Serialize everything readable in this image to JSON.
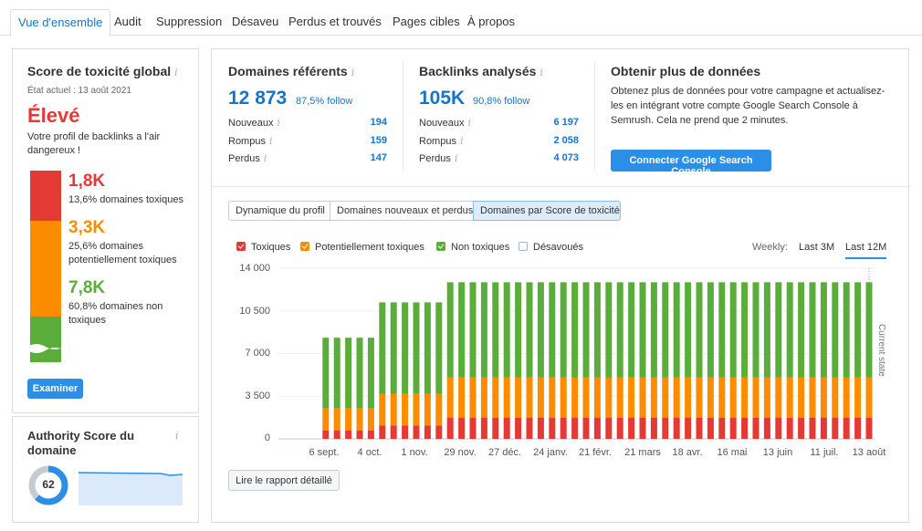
{
  "tabs": [
    "Vue d'ensemble",
    "Audit",
    "Suppression",
    "Désaveu",
    "Perdus et trouvés",
    "Pages cibles",
    "À propos"
  ],
  "toxicity": {
    "title": "Score de toxicité global",
    "info": "i",
    "state": "État actuel : 13 août 2021",
    "level": "Élevé",
    "description": "Votre profil de backlinks a l'air dangereux !",
    "colors": {
      "toxic": "#e53935",
      "potential": "#fb8c00",
      "non_toxic": "#5aad3a"
    },
    "items": [
      {
        "value": "1,8K",
        "label": "13,6% domaines toxiques"
      },
      {
        "value": "3,3K",
        "label": "25,6% domaines potentiellement toxiques"
      },
      {
        "value": "7,8K",
        "label": "60,8% domaines non toxiques"
      }
    ],
    "button": "Examiner"
  },
  "authority": {
    "title": "Authority Score du domaine",
    "info": "i",
    "score": "62",
    "score_fraction": 0.62
  },
  "referring": {
    "title": "Domaines référents",
    "info": "i",
    "value": "12 873",
    "follow": "87,5% follow",
    "rows": [
      {
        "label": "Nouveaux",
        "value": "194"
      },
      {
        "label": "Rompus",
        "value": "159"
      },
      {
        "label": "Perdus",
        "value": "147"
      }
    ]
  },
  "backlinks": {
    "title": "Backlinks analysés",
    "info": "i",
    "value": "105K",
    "follow": "90,8% follow",
    "rows": [
      {
        "label": "Nouveaux",
        "value": "6 197"
      },
      {
        "label": "Rompus",
        "value": "2 058"
      },
      {
        "label": "Perdus",
        "value": "4 073"
      }
    ]
  },
  "more": {
    "title": "Obtenir plus de données",
    "text": "Obtenez plus de données pour votre campagne et actualisez-les en intégrant votre compte Google Search Console à Semrush. Cela ne prend que 2 minutes.",
    "button": "Connecter Google Search Console"
  },
  "segments": [
    "Dynamique du profil",
    "Domaines nouveaux et perdus",
    "Domaines par Score de toxicité"
  ],
  "legend": [
    "Toxiques",
    "Potentiellement toxiques",
    "Non toxiques",
    "Désavoués"
  ],
  "period": {
    "label": "Weekly:",
    "options": [
      "Last 3M",
      "Last 12M"
    ],
    "selected": "Last 12M"
  },
  "current_state_label": "Current state",
  "report_button": "Lire le rapport détaillé",
  "chart_data": {
    "type": "bar",
    "stacked": true,
    "ylim": [
      0,
      14000
    ],
    "y_ticks": [
      "14 000",
      "10 500",
      "7 000",
      "3 500",
      "0"
    ],
    "x_tick_labels": [
      "6 sept.",
      "4 oct.",
      "1 nov.",
      "29 nov.",
      "27 déc.",
      "24 janv.",
      "21 févr.",
      "21 mars",
      "18 avr.",
      "16 mai",
      "13 juin",
      "11 juil.",
      "13 août"
    ],
    "series": [
      {
        "name": "Toxiques",
        "color": "#e53935",
        "values": [
          0,
          0,
          0,
          0,
          700,
          700,
          700,
          700,
          700,
          1100,
          1100,
          1100,
          1100,
          1100,
          1100,
          1750,
          1750,
          1750,
          1750,
          1750,
          1750,
          1750,
          1750,
          1750,
          1750,
          1750,
          1750,
          1750,
          1750,
          1750,
          1750,
          1750,
          1750,
          1750,
          1750,
          1750,
          1750,
          1750,
          1750,
          1750,
          1750,
          1750,
          1750,
          1750,
          1750,
          1750,
          1750,
          1750,
          1750,
          1750,
          1750,
          1750,
          1750
        ]
      },
      {
        "name": "Potentiellement toxiques",
        "color": "#fb8c00",
        "values": [
          0,
          0,
          0,
          0,
          1800,
          1800,
          1800,
          1800,
          1800,
          2600,
          2600,
          2600,
          2600,
          2600,
          2600,
          3300,
          3300,
          3300,
          3300,
          3300,
          3300,
          3300,
          3300,
          3300,
          3300,
          3300,
          3300,
          3300,
          3300,
          3300,
          3300,
          3300,
          3300,
          3300,
          3300,
          3300,
          3300,
          3300,
          3300,
          3300,
          3300,
          3300,
          3300,
          3300,
          3300,
          3300,
          3300,
          3300,
          3300,
          3300,
          3300,
          3300,
          3300
        ]
      },
      {
        "name": "Non toxiques",
        "color": "#5aad3a",
        "values": [
          0,
          0,
          0,
          0,
          5800,
          5800,
          5800,
          5800,
          5800,
          7500,
          7500,
          7500,
          7500,
          7500,
          7500,
          7800,
          7800,
          7800,
          7800,
          7800,
          7800,
          7800,
          7800,
          7800,
          7800,
          7800,
          7800,
          7800,
          7800,
          7800,
          7800,
          7800,
          7800,
          7800,
          7800,
          7800,
          7800,
          7800,
          7800,
          7800,
          7800,
          7800,
          7800,
          7800,
          7800,
          7800,
          7800,
          7800,
          7800,
          7800,
          7800,
          7800,
          7800
        ]
      },
      {
        "name": "Désavoués",
        "color": "#8bbbe8",
        "values": [
          0,
          0,
          0,
          0,
          0,
          0,
          0,
          0,
          0,
          0,
          0,
          0,
          0,
          0,
          0,
          0,
          0,
          0,
          0,
          0,
          0,
          0,
          0,
          0,
          0,
          0,
          0,
          0,
          0,
          0,
          0,
          0,
          0,
          0,
          0,
          0,
          0,
          0,
          0,
          0,
          0,
          0,
          0,
          0,
          0,
          0,
          0,
          0,
          0,
          0,
          0,
          0,
          0
        ]
      }
    ],
    "grid": true,
    "legend_position": "top-left"
  }
}
